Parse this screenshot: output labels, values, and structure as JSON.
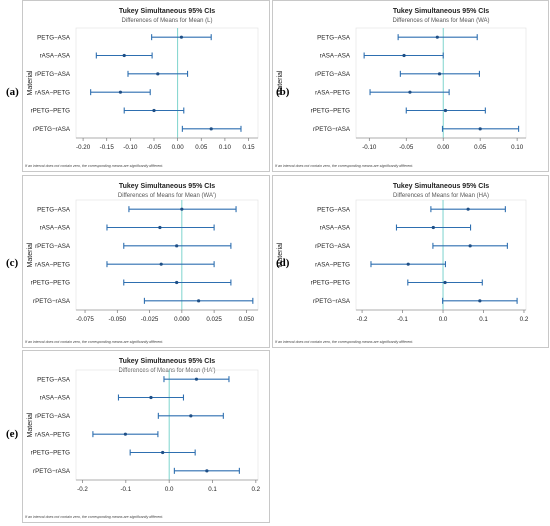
{
  "footnote": "If an interval does not contain zero, the corresponding means are significantly different.",
  "colors": {
    "interval": "#2e6fb0",
    "midpoint": "#1f4f86",
    "zero_line": "#6fcfc8",
    "frame": "#c8c8c8",
    "text": "#222222",
    "subtitle": "#555555"
  },
  "chart_data": [
    {
      "panel_label": "(a)",
      "type": "interval_plot",
      "title": "Tukey Simultaneous 95% CIs",
      "subtitle": "Differences of Means for Mean (L)",
      "ylabel": "Material",
      "xlabel": "",
      "categories": [
        "PETG−ASA",
        "rASA−ASA",
        "rPETG−ASA",
        "rASA−PETG",
        "rPETG−PETG",
        "rPETG−rASA"
      ],
      "intervals": [
        {
          "low": -0.055,
          "mid": 0.008,
          "high": 0.071
        },
        {
          "low": -0.172,
          "mid": -0.113,
          "high": -0.054
        },
        {
          "low": -0.105,
          "mid": -0.042,
          "high": 0.021
        },
        {
          "low": -0.184,
          "mid": -0.121,
          "high": -0.058
        },
        {
          "low": -0.113,
          "mid": -0.05,
          "high": 0.013
        },
        {
          "low": 0.01,
          "mid": 0.071,
          "high": 0.134
        }
      ],
      "xlim": [
        -0.215,
        0.17
      ],
      "xticks": [
        -0.2,
        -0.15,
        -0.1,
        -0.05,
        0.0,
        0.05,
        0.1,
        0.15
      ],
      "xtick_labels": [
        "-0.20",
        "-0.15",
        "-0.10",
        "-0.05",
        "0.00",
        "0.05",
        "0.10",
        "0.15"
      ],
      "reference_line": 0
    },
    {
      "panel_label": "(b)",
      "type": "interval_plot",
      "title": "Tukey Simultaneous 95% CIs",
      "subtitle": "Differences of Means for Mean (WA)",
      "ylabel": "Material",
      "xlabel": "",
      "categories": [
        "PETG−ASA",
        "rASA−ASA",
        "rPETG−ASA",
        "rASA−PETG",
        "rPETG−PETG",
        "rPETG−rASA"
      ],
      "intervals": [
        {
          "low": -0.061,
          "mid": -0.008,
          "high": 0.046
        },
        {
          "low": -0.107,
          "mid": -0.053,
          "high": 0.0
        },
        {
          "low": -0.058,
          "mid": -0.005,
          "high": 0.049
        },
        {
          "low": -0.099,
          "mid": -0.045,
          "high": 0.008
        },
        {
          "low": -0.05,
          "mid": 0.003,
          "high": 0.057
        },
        {
          "low": -0.001,
          "mid": 0.05,
          "high": 0.102
        }
      ],
      "xlim": [
        -0.118,
        0.112
      ],
      "xticks": [
        -0.1,
        -0.05,
        0.0,
        0.05,
        0.1
      ],
      "xtick_labels": [
        "-0.10",
        "-0.05",
        "0.00",
        "0.05",
        "0.10"
      ],
      "reference_line": 0
    },
    {
      "panel_label": "(c)",
      "type": "interval_plot",
      "title": "Tukey Simultaneous 95% CIs",
      "subtitle": "Differences of Means for Mean (WA')",
      "ylabel": "Material",
      "xlabel": "",
      "categories": [
        "PETG−ASA",
        "rASA−ASA",
        "rPETG−ASA",
        "rASA−PETG",
        "rPETG−PETG",
        "rPETG−rASA"
      ],
      "intervals": [
        {
          "low": -0.041,
          "mid": 0.0,
          "high": 0.042
        },
        {
          "low": -0.058,
          "mid": -0.017,
          "high": 0.025
        },
        {
          "low": -0.045,
          "mid": -0.004,
          "high": 0.038
        },
        {
          "low": -0.058,
          "mid": -0.016,
          "high": 0.025
        },
        {
          "low": -0.045,
          "mid": -0.004,
          "high": 0.038
        },
        {
          "low": -0.029,
          "mid": 0.013,
          "high": 0.055
        }
      ],
      "xlim": [
        -0.082,
        0.059
      ],
      "xticks": [
        -0.075,
        -0.05,
        -0.025,
        0.0,
        0.025,
        0.05
      ],
      "xtick_labels": [
        "-0.075",
        "-0.050",
        "-0.025",
        "0.000",
        "0.025",
        "0.050"
      ],
      "reference_line": 0
    },
    {
      "panel_label": "(d)",
      "type": "interval_plot",
      "title": "Tukey Simultaneous 95% CIs",
      "subtitle": "Differences of Means for Mean (HA)",
      "ylabel": "Material",
      "xlabel": "",
      "categories": [
        "PETG−ASA",
        "rASA−ASA",
        "rPETG−ASA",
        "rASA−PETG",
        "rPETG−PETG",
        "rPETG−rASA"
      ],
      "intervals": [
        {
          "low": -0.03,
          "mid": 0.062,
          "high": 0.154
        },
        {
          "low": -0.115,
          "mid": -0.024,
          "high": 0.068
        },
        {
          "low": -0.025,
          "mid": 0.067,
          "high": 0.159
        },
        {
          "low": -0.178,
          "mid": -0.086,
          "high": 0.006
        },
        {
          "low": -0.087,
          "mid": 0.005,
          "high": 0.097
        },
        {
          "low": -0.001,
          "mid": 0.091,
          "high": 0.183
        }
      ],
      "xlim": [
        -0.215,
        0.205
      ],
      "xticks": [
        -0.2,
        -0.1,
        0.0,
        0.1,
        0.2
      ],
      "xtick_labels": [
        "-0.2",
        "-0.1",
        "0.0",
        "0.1",
        "0.2"
      ],
      "reference_line": 0
    },
    {
      "panel_label": "(e)",
      "type": "interval_plot",
      "title": "Tukey Simultaneous 95% CIs",
      "subtitle": "Differences of Means for Mean (HA')",
      "ylabel": "Material",
      "xlabel": "",
      "categories": [
        "PETG−ASA",
        "rASA−ASA",
        "rPETG−ASA",
        "rASA−PETG",
        "rPETG−PETG",
        "rPETG−rASA"
      ],
      "intervals": [
        {
          "low": -0.012,
          "mid": 0.063,
          "high": 0.138
        },
        {
          "low": -0.117,
          "mid": -0.042,
          "high": 0.033
        },
        {
          "low": -0.025,
          "mid": 0.05,
          "high": 0.125
        },
        {
          "low": -0.176,
          "mid": -0.101,
          "high": -0.026
        },
        {
          "low": -0.09,
          "mid": -0.015,
          "high": 0.06
        },
        {
          "low": 0.012,
          "mid": 0.087,
          "high": 0.162
        }
      ],
      "xlim": [
        -0.215,
        0.205
      ],
      "xticks": [
        -0.2,
        -0.1,
        0.0,
        0.1,
        0.2
      ],
      "xtick_labels": [
        "-0.2",
        "-0.1",
        "0.0",
        "0.1",
        "0.2"
      ],
      "reference_line": 0
    }
  ]
}
